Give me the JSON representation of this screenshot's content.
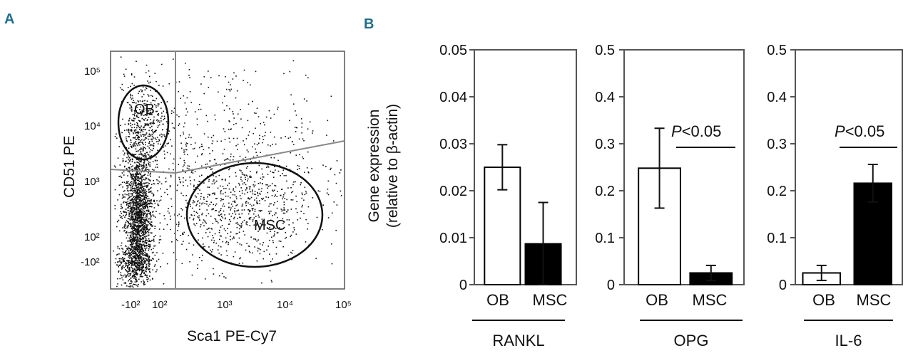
{
  "panel_a": {
    "letter": "A",
    "xlabel": "Sca1 PE-Cy7",
    "ylabel": "CD51 PE",
    "x_ticks": [
      "-10²",
      "10²",
      "10³",
      "10⁴",
      "10⁵"
    ],
    "y_ticks": [
      "10⁵",
      "10⁴",
      "10³",
      "10²",
      "-10²"
    ],
    "gates": [
      "OB",
      "MSC"
    ],
    "colors": {
      "dots": "#111111",
      "gate_line": "#888888",
      "frame": "#555555"
    }
  },
  "panel_b": {
    "letter": "B",
    "ylabel_line1": "Gene expression",
    "ylabel_line2": "(relative to β-actin)",
    "letter_color": "#1f6e8c"
  },
  "chart_data": [
    {
      "type": "bar",
      "title": "RANKL",
      "categories": [
        "OB",
        "MSC"
      ],
      "values": [
        0.025,
        0.0087
      ],
      "errors": [
        0.0048,
        0.0088
      ],
      "fills": [
        "#ffffff",
        "#000000"
      ],
      "ylim": [
        0,
        0.05
      ],
      "yticks": [
        "0",
        "0.01",
        "0.02",
        "0.03",
        "0.04",
        "0.05"
      ],
      "ytick_values": [
        0,
        0.01,
        0.02,
        0.03,
        0.04,
        0.05
      ],
      "annotation": "",
      "xlabel": "RANKL",
      "ylabel": "Gene expression (relative to β-actin)"
    },
    {
      "type": "bar",
      "title": "OPG",
      "categories": [
        "OB",
        "MSC"
      ],
      "values": [
        0.248,
        0.025
      ],
      "errors": [
        0.085,
        0.016
      ],
      "fills": [
        "#ffffff",
        "#000000"
      ],
      "ylim": [
        0,
        0.5
      ],
      "yticks": [
        "0",
        "0.1",
        "0.2",
        "0.3",
        "0.4",
        "0.5"
      ],
      "ytick_values": [
        0,
        0.1,
        0.2,
        0.3,
        0.4,
        0.5
      ],
      "annotation": "P<0.05",
      "xlabel": "OPG",
      "ylabel": ""
    },
    {
      "type": "bar",
      "title": "IL-6",
      "categories": [
        "OB",
        "MSC"
      ],
      "values": [
        0.025,
        0.216
      ],
      "errors": [
        0.016,
        0.04
      ],
      "fills": [
        "#ffffff",
        "#000000"
      ],
      "ylim": [
        0,
        0.5
      ],
      "yticks": [
        "0",
        "0.1",
        "0.2",
        "0.3",
        "0.4",
        "0.5"
      ],
      "ytick_values": [
        0,
        0.1,
        0.2,
        0.3,
        0.4,
        0.5
      ],
      "annotation": "P<0.05",
      "xlabel": "IL-6",
      "ylabel": ""
    }
  ]
}
